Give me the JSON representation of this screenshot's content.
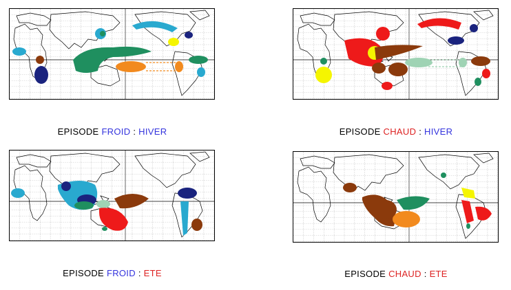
{
  "panels": [
    {
      "episode": "EPISODE",
      "phase": "FROID",
      "season": "HIVER",
      "phase_color": "#3333dd",
      "season_color": "#3333dd"
    },
    {
      "episode": "EPISODE",
      "phase": "CHAUD",
      "season": "HIVER",
      "phase_color": "#dd2222",
      "season_color": "#3333dd"
    },
    {
      "episode": "EPISODE",
      "phase": "FROID",
      "season": "ETE",
      "phase_color": "#3333dd",
      "season_color": "#dd2222"
    },
    {
      "episode": "EPISODE",
      "phase": "CHAUD",
      "season": "ETE",
      "phase_color": "#dd2222",
      "season_color": "#dd2222"
    }
  ],
  "separator": ":",
  "legend_colors": {
    "cyan": "#29a9cf",
    "dark_blue": "#1a237e",
    "green": "#1f8f5f",
    "light_green": "#9fd3b4",
    "orange": "#f28a1e",
    "yellow": "#f5f500",
    "brown": "#8b3a0c",
    "red": "#ee1a1a"
  }
}
